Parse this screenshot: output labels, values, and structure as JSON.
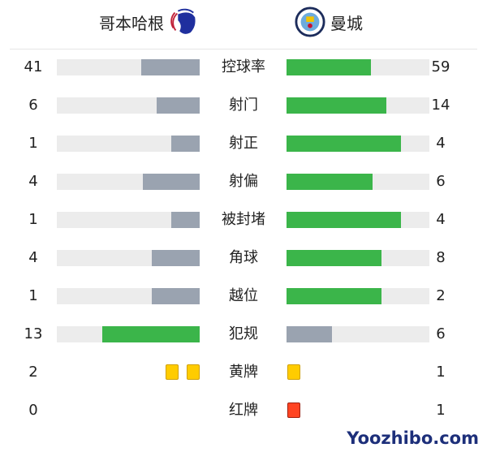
{
  "header": {
    "home_team": "哥本哈根",
    "away_team": "曼城",
    "home_logo": "fc-kobenhavn-lion-crest",
    "away_logo": "manchester-city-crest"
  },
  "colors": {
    "lead": "#3bb54a",
    "trail": "#9aa3b0",
    "track": "#ececec",
    "yellow": "#ffcc00",
    "red": "#ff4422"
  },
  "stats": [
    {
      "label": "控球率",
      "home": "41",
      "away": "59"
    },
    {
      "label": "射门",
      "home": "6",
      "away": "14"
    },
    {
      "label": "射正",
      "home": "1",
      "away": "4"
    },
    {
      "label": "射偏",
      "home": "4",
      "away": "6"
    },
    {
      "label": "被封堵",
      "home": "1",
      "away": "4"
    },
    {
      "label": "角球",
      "home": "4",
      "away": "8"
    },
    {
      "label": "越位",
      "home": "1",
      "away": "2"
    },
    {
      "label": "犯规",
      "home": "13",
      "away": "6"
    }
  ],
  "cards": [
    {
      "label": "黄牌",
      "home": "2",
      "away": "1",
      "type": "yellow"
    },
    {
      "label": "红牌",
      "home": "0",
      "away": "1",
      "type": "red"
    }
  ],
  "watermark": "Yoozhibo.com"
}
